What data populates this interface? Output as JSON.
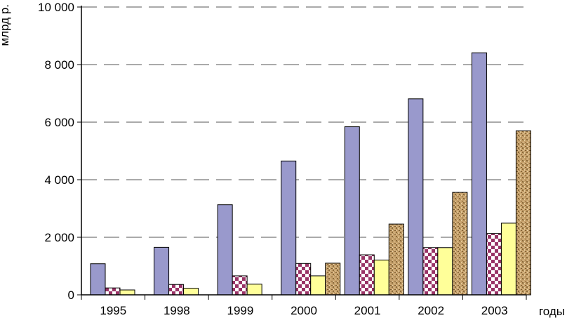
{
  "chart_data": {
    "type": "bar",
    "title": "",
    "ylabel": "млрд р.",
    "xlabel": "годы",
    "categories": [
      "1995",
      "1998",
      "1999",
      "2000",
      "2001",
      "2002",
      "2003"
    ],
    "ylim": [
      0,
      10000
    ],
    "yticks": [
      0,
      2000,
      4000,
      6000,
      8000,
      10000
    ],
    "ytick_labels": [
      "0",
      "2 000",
      "4 000",
      "6 000",
      "8 000",
      "10 000"
    ],
    "grid": "horizontal dashed",
    "legend": "none",
    "series": [
      {
        "values": [
          1080,
          1650,
          3130,
          4650,
          5840,
          6810,
          8410
        ],
        "color": "#9999cc",
        "pattern": "solid"
      },
      {
        "values": [
          240,
          360,
          660,
          1090,
          1390,
          1640,
          2130
        ],
        "color": "#993366",
        "pattern": "checker"
      },
      {
        "values": [
          170,
          230,
          370,
          660,
          1210,
          1640,
          2490
        ],
        "color": "#ffff99",
        "pattern": "solid"
      },
      {
        "values": [
          null,
          null,
          null,
          1100,
          2460,
          3560,
          5700
        ],
        "color": "#c8a36e",
        "pattern": "texture"
      }
    ]
  }
}
